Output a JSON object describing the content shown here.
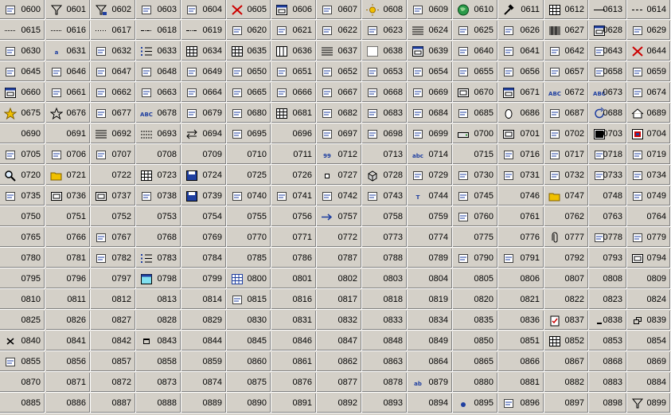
{
  "ids": [
    "0600",
    "0601",
    "0602",
    "0603",
    "0604",
    "0605",
    "0606",
    "0607",
    "0608",
    "0609",
    "0610",
    "0611",
    "0612",
    "0613",
    "0614",
    "0615",
    "0616",
    "0617",
    "0618",
    "0619",
    "0620",
    "0621",
    "0622",
    "0623",
    "0624",
    "0625",
    "0626",
    "0627",
    "0628",
    "0629",
    "0630",
    "0631",
    "0632",
    "0633",
    "0634",
    "0635",
    "0636",
    "0637",
    "0638",
    "0639",
    "0640",
    "0641",
    "0642",
    "0643",
    "0644",
    "0645",
    "0646",
    "0647",
    "0648",
    "0649",
    "0650",
    "0651",
    "0652",
    "0653",
    "0654",
    "0655",
    "0656",
    "0657",
    "0658",
    "0659",
    "0660",
    "0661",
    "0662",
    "0663",
    "0664",
    "0665",
    "0666",
    "0667",
    "0668",
    "0669",
    "0670",
    "0671",
    "0672",
    "0673",
    "0674",
    "0675",
    "0676",
    "0677",
    "0678",
    "0679",
    "0680",
    "0681",
    "0682",
    "0683",
    "0684",
    "0685",
    "0686",
    "0687",
    "0688",
    "0689",
    "0690",
    "0691",
    "0692",
    "0693",
    "0694",
    "0695",
    "0696",
    "0697",
    "0698",
    "0699",
    "0700",
    "0701",
    "0702",
    "0703",
    "0704",
    "0705",
    "0706",
    "0707",
    "0708",
    "0709",
    "0710",
    "0711",
    "0712",
    "0713",
    "0714",
    "0715",
    "0716",
    "0717",
    "0718",
    "0719",
    "0720",
    "0721",
    "0722",
    "0723",
    "0724",
    "0725",
    "0726",
    "0727",
    "0728",
    "0729",
    "0730",
    "0731",
    "0732",
    "0733",
    "0734",
    "0735",
    "0736",
    "0737",
    "0738",
    "0739",
    "0740",
    "0741",
    "0742",
    "0743",
    "0744",
    "0745",
    "0746",
    "0747",
    "0748",
    "0749",
    "0750",
    "0751",
    "0752",
    "0753",
    "0754",
    "0755",
    "0756",
    "0757",
    "0758",
    "0759",
    "0760",
    "0761",
    "0762",
    "0763",
    "0764",
    "0765",
    "0766",
    "0767",
    "0768",
    "0769",
    "0770",
    "0771",
    "0772",
    "0773",
    "0774",
    "0775",
    "0776",
    "0777",
    "0778",
    "0779",
    "0780",
    "0781",
    "0782",
    "0783",
    "0784",
    "0785",
    "0786",
    "0787",
    "0788",
    "0789",
    "0790",
    "0791",
    "0792",
    "0793",
    "0794",
    "0795",
    "0796",
    "0797",
    "0798",
    "0799",
    "0800",
    "0801",
    "0802",
    "0803",
    "0804",
    "0805",
    "0806",
    "0807",
    "0808",
    "0809",
    "0810",
    "0811",
    "0812",
    "0813",
    "0814",
    "0815",
    "0816",
    "0817",
    "0818",
    "0819",
    "0820",
    "0821",
    "0822",
    "0823",
    "0824",
    "0825",
    "0826",
    "0827",
    "0828",
    "0829",
    "0830",
    "0831",
    "0832",
    "0833",
    "0834",
    "0835",
    "0836",
    "0837",
    "0838",
    "0839",
    "0840",
    "0841",
    "0842",
    "0843",
    "0844",
    "0845",
    "0846",
    "0847",
    "0848",
    "0849",
    "0850",
    "0851",
    "0852",
    "0853",
    "0854",
    "0855",
    "0856",
    "0857",
    "0858",
    "0859",
    "0860",
    "0861",
    "0862",
    "0863",
    "0864",
    "0865",
    "0866",
    "0867",
    "0868",
    "0869",
    "0870",
    "0871",
    "0872",
    "0873",
    "0874",
    "0875",
    "0876",
    "0877",
    "0878",
    "0879",
    "0880",
    "0881",
    "0882",
    "0883",
    "0884",
    "0885",
    "0886",
    "0887",
    "0888",
    "0889",
    "0890",
    "0891",
    "0892",
    "0893",
    "0894",
    "0895",
    "0896",
    "0897",
    "0898",
    "0899"
  ],
  "icons": {
    "0600": "table-insert-icon",
    "0601": "filter-icon",
    "0602": "filter-edit-icon",
    "0603": "shape-arrow-icon",
    "0604": "close-window-icon",
    "0605": "delete-filter-icon",
    "0606": "form-window-icon",
    "0607": "user-card-icon",
    "0608": "sun-icon",
    "0609": "cat-face-icon",
    "0610": "globe-icon",
    "0611": "hammer-icon",
    "0612": "calendar-grid-icon",
    "0613": "solid-line-icon",
    "0614": "dashed-line-icon",
    "0615": "dotted-line-icon",
    "0616": "fine-dotted-line-icon",
    "0617": "sparse-dotted-line-icon",
    "0618": "dash-dot-line-icon",
    "0619": "dash-dot-dot-line-icon",
    "0620": "shapes-group-icon",
    "0621": "tools-cross-icon",
    "0622": "align-objects-icon",
    "0623": "grid-dots-icon",
    "0624": "text-lines-icon",
    "0625": "diagonal-dots-icon",
    "0626": "word-document-icon",
    "0627": "barcode-icon",
    "0628": "properties-window-icon",
    "0629": "scroll-icon",
    "0630": "edit-note-icon",
    "0631": "text-underline-icon",
    "0632": "tree-dots-icon",
    "0633": "list-bullets-icon",
    "0634": "table-lines-icon",
    "0635": "table-grid-icon",
    "0636": "table-columns-icon",
    "0637": "table-rows-icon",
    "0638": "table-dotted-icon",
    "0639": "dialog-box-icon",
    "0640": "highlighter-icon",
    "0641": "crop-icon",
    "0642": "tools-icon",
    "0643": "burst-icon",
    "0644": "delete-x-icon",
    "0645": "line-tool-icon",
    "0646": "line-tool-2-icon",
    "0647": "line-tool-3-icon",
    "0648": "line-tool-4-icon",
    "0649": "line-tool-5-icon",
    "0650": "line-tool-6-icon",
    "0651": "line-tool-7-icon",
    "0652": "line-tool-8-icon",
    "0653": "sort-list-icon",
    "0654": "sort-desc-icon",
    "0655": "sort-asc-icon",
    "0656": "sort-down-icon",
    "0657": "resize-box-icon",
    "0658": "copy-windows-icon",
    "0659": "network-icon",
    "0660": "toolbar-icon",
    "0661": "rotate-shape-icon",
    "0662": "shape-tool-icon",
    "0663": "page-corner-icon",
    "0664": "align-left-icon",
    "0665": "align-right-icon",
    "0666": "bar-columns-icon",
    "0667": "bar-chart-icon",
    "0668": "distribute-icon",
    "0669": "group-objects-icon",
    "0670": "frame-icon",
    "0671": "window-frame-icon",
    "0672": "spell-abc-icon",
    "0673": "auto-text-icon",
    "0674": "ungroup-icon",
    "0675": "favorite-star-icon",
    "0676": "cancel-star-icon",
    "0677": "phone-icon",
    "0678": "spelling-abc-icon",
    "0679": "text-style-icon",
    "0680": "message-icon",
    "0681": "spreadsheet-icon",
    "0682": "portrait-icon",
    "0683": "move-arrows-icon",
    "0684": "printer-settings-icon",
    "0685": "color-contrast-icon",
    "0686": "egg-icon",
    "0687": "calendar-week-icon",
    "0688": "refresh-icon",
    "0689": "home-icon",
    "0690": "blank-icon",
    "0691": "blank-icon",
    "0692": "line-weight-icon",
    "0693": "line-dash-icon",
    "0694": "swap-arrows-icon",
    "0695": "merge-cells-icon",
    "0696": "blank-icon",
    "0697": "document-arrow-icon",
    "0698": "line-spacing-icon",
    "0699": "line-spacing-2-icon",
    "0700": "drive-icon",
    "0701": "note-frame-icon",
    "0702": "org-chart-icon",
    "0703": "window-dark-icon",
    "0704": "window-color-icon",
    "0705": "increase-spacing-icon",
    "0706": "decrease-spacing-icon",
    "0707": "photo-edit-icon",
    "0708": "blank-icon",
    "0709": "blank-icon",
    "0710": "blank-icon",
    "0711": "blank-icon",
    "0712": "numbering-icon",
    "0713": "blank-icon",
    "0714": "strikethrough-abc-icon",
    "0715": "blank-icon",
    "0716": "paragraph-mark-icon",
    "0717": "paragraph-mark-2-icon",
    "0718": "mail-lock-icon",
    "0719": "mail-send-icon",
    "0720": "search-magnifier-icon",
    "0721": "open-folder-icon",
    "0722": "blank-icon",
    "0723": "table-small-icon",
    "0724": "save-disk-icon",
    "0725": "blank-icon",
    "0726": "blank-icon",
    "0727": "small-square-icon",
    "0728": "cube-icon",
    "0729": "image-box-icon",
    "0730": "cursor-network-icon",
    "0731": "network-node-icon",
    "0732": "crop-corner-icon",
    "0733": "mail-clock-icon",
    "0734": "mail-group-icon",
    "0735": "selection-icon",
    "0736": "frame-small-icon",
    "0737": "text-box-icon",
    "0738": "grid-small-icon",
    "0739": "disk-icon",
    "0740": "presentation-icon",
    "0741": "pattern-box-icon",
    "0742": "shape-connector-icon",
    "0743": "page-marker-icon",
    "0744": "text-tool-icon",
    "0745": "stamp-icon",
    "0746": "blank-icon",
    "0747": "folder-open-icon",
    "0748": "blank-icon",
    "0749": "copy-stack-icon",
    "0750": "blank-icon",
    "0751": "blank-icon",
    "0752": "blank-icon",
    "0753": "blank-icon",
    "0754": "blank-icon",
    "0755": "blank-icon",
    "0756": "blank-icon",
    "0757": "arrow-right-icon",
    "0758": "blank-icon",
    "0759": "blank-icon",
    "0760": "book-icon",
    "0761": "blank-icon",
    "0762": "blank-icon",
    "0763": "blank-icon",
    "0764": "blank-icon",
    "0765": "blank-icon",
    "0766": "blank-icon",
    "0767": "document-lines-icon",
    "0768": "blank-icon",
    "0769": "blank-icon",
    "0770": "blank-icon",
    "0771": "blank-icon",
    "0772": "blank-icon",
    "0773": "blank-icon",
    "0774": "blank-icon",
    "0775": "blank-icon",
    "0776": "blank-icon",
    "0777": "paperclip-icon",
    "0778": "document-small-icon",
    "0779": "paragraph-align-icon",
    "0780": "blank-icon",
    "0781": "blank-icon",
    "0782": "sort-bars-icon",
    "0783": "bullet-list-icon",
    "0784": "blank-icon",
    "0785": "blank-icon",
    "0786": "blank-icon",
    "0787": "blank-icon",
    "0788": "blank-icon",
    "0789": "blank-icon",
    "0790": "user-group-icon",
    "0791": "pencil-ruler-icon",
    "0792": "blank-icon",
    "0793": "blank-icon",
    "0794": "input-field-icon",
    "0795": "blank-icon",
    "0796": "blank-icon",
    "0797": "blank-icon",
    "0798": "window-cyan-icon",
    "0799": "blank-icon",
    "0800": "table-blue-icon",
    "0801": "blank-icon",
    "0802": "blank-icon",
    "0803": "blank-icon",
    "0804": "blank-icon",
    "0805": "blank-icon",
    "0806": "blank-icon",
    "0807": "blank-icon",
    "0808": "blank-icon",
    "0809": "blank-icon",
    "0810": "blank-icon",
    "0811": "blank-icon",
    "0812": "blank-icon",
    "0813": "blank-icon",
    "0814": "blank-icon",
    "0815": "help-user-icon",
    "0816": "blank-icon",
    "0817": "blank-icon",
    "0818": "blank-icon",
    "0819": "blank-icon",
    "0820": "blank-icon",
    "0821": "blank-icon",
    "0822": "blank-icon",
    "0823": "blank-icon",
    "0824": "blank-icon",
    "0825": "blank-icon",
    "0826": "blank-icon",
    "0827": "blank-icon",
    "0828": "blank-icon",
    "0829": "blank-icon",
    "0830": "blank-icon",
    "0831": "blank-icon",
    "0832": "blank-icon",
    "0833": "blank-icon",
    "0834": "blank-icon",
    "0835": "blank-icon",
    "0836": "blank-icon",
    "0837": "clipboard-check-icon",
    "0838": "minimize-icon",
    "0839": "restore-icon",
    "0840": "close-x-icon",
    "0841": "blank-icon",
    "0842": "blank-icon",
    "0843": "maximize-icon",
    "0844": "blank-icon",
    "0845": "blank-icon",
    "0846": "blank-icon",
    "0847": "blank-icon",
    "0848": "blank-icon",
    "0849": "blank-icon",
    "0850": "blank-icon",
    "0851": "blank-icon",
    "0852": "calculator-icon",
    "0853": "blank-icon",
    "0854": "blank-icon",
    "0855": "edit-form-icon",
    "0856": "blank-icon",
    "0857": "blank-icon",
    "0858": "blank-icon",
    "0859": "blank-icon",
    "0860": "blank-icon",
    "0861": "blank-icon",
    "0862": "blank-icon",
    "0863": "blank-icon",
    "0864": "blank-icon",
    "0865": "blank-icon",
    "0866": "blank-icon",
    "0867": "blank-icon",
    "0868": "blank-icon",
    "0869": "blank-icon",
    "0870": "blank-icon",
    "0871": "blank-icon",
    "0872": "blank-icon",
    "0873": "blank-icon",
    "0874": "blank-icon",
    "0875": "blank-icon",
    "0876": "blank-icon",
    "0877": "blank-icon",
    "0878": "blank-icon",
    "0879": "replace-text-icon",
    "0880": "blank-icon",
    "0881": "blank-icon",
    "0882": "blank-icon",
    "0883": "blank-icon",
    "0884": "blank-icon",
    "0885": "blank-icon",
    "0886": "blank-icon",
    "0887": "blank-icon",
    "0888": "blank-icon",
    "0889": "blank-icon",
    "0890": "blank-icon",
    "0891": "blank-icon",
    "0892": "blank-icon",
    "0893": "blank-icon",
    "0894": "blank-icon",
    "0895": "bullet-dot-icon",
    "0896": "table-frame-icon",
    "0897": "blank-icon",
    "0898": "blank-icon",
    "0899": "filter-equal-icon"
  },
  "glyph_texts": {
    "0631": "a",
    "0672": "ABC",
    "0673": "ABC",
    "0678": "ABC",
    "0712": "99",
    "0714": "abc",
    "0744": "T",
    "0879": "ab"
  },
  "colors": {
    "background": "#d4d0c8",
    "highlight": "#ffffff",
    "shadow": "#808080",
    "text": "#000000",
    "icon_blue": "#1f3fa0",
    "icon_red": "#cc0000",
    "icon_yellow": "#f0c000",
    "icon_green": "#008000"
  }
}
